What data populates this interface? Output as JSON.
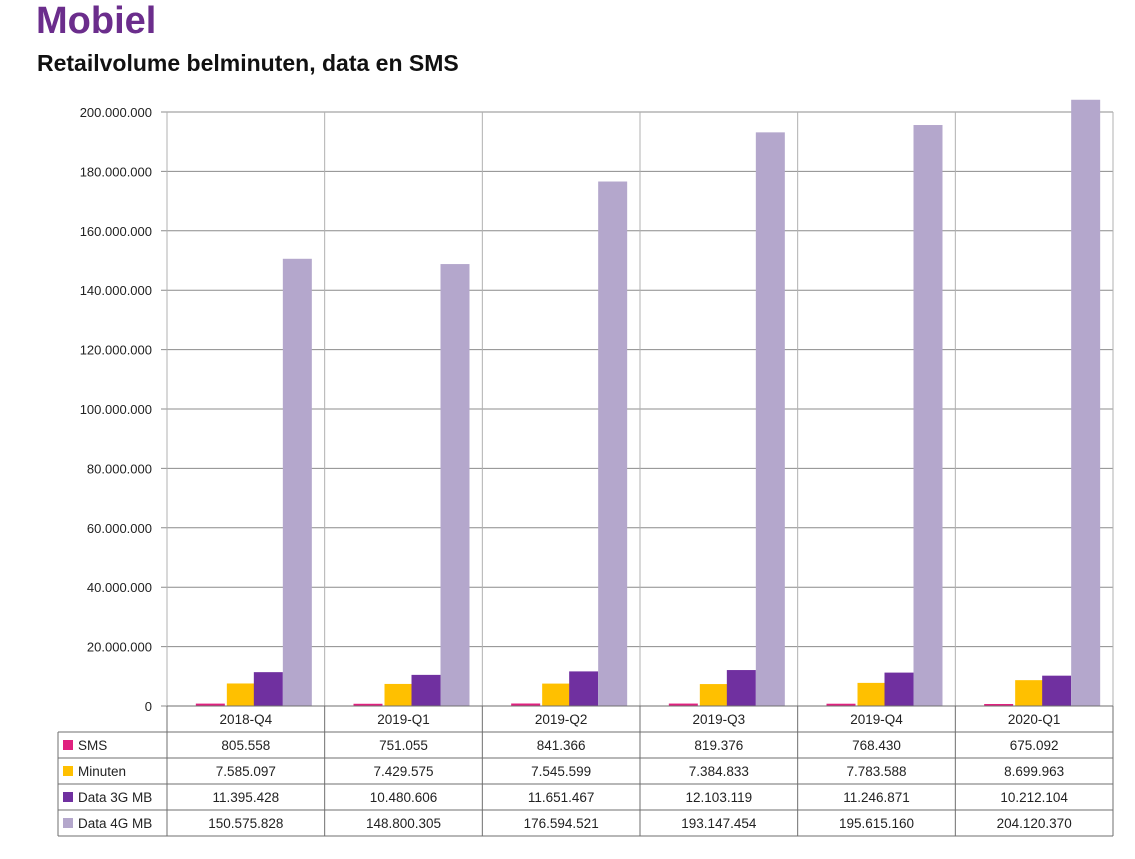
{
  "header": {
    "title": "Mobiel",
    "subtitle": "Retailvolume belminuten, data en SMS"
  },
  "chart_data": {
    "type": "bar",
    "title": "",
    "xlabel": "",
    "ylabel": "",
    "ylim": [
      0,
      200000000
    ],
    "yticks": [
      0,
      20000000,
      40000000,
      60000000,
      80000000,
      100000000,
      120000000,
      140000000,
      160000000,
      180000000,
      200000000
    ],
    "ytick_labels": [
      "0",
      "20.000.000",
      "40.000.000",
      "60.000.000",
      "80.000.000",
      "100.000.000",
      "120.000.000",
      "140.000.000",
      "160.000.000",
      "180.000.000",
      "200.000.000"
    ],
    "grid": true,
    "legend": "data-table",
    "categories": [
      "2018-Q4",
      "2019-Q1",
      "2019-Q2",
      "2019-Q3",
      "2019-Q4",
      "2020-Q1"
    ],
    "series": [
      {
        "name": "SMS",
        "color": "#e0217f",
        "values": [
          805558,
          751055,
          841366,
          819376,
          768430,
          675092
        ],
        "labels": [
          "805.558",
          "751.055",
          "841.366",
          "819.376",
          "768.430",
          "675.092"
        ]
      },
      {
        "name": "Minuten",
        "color": "#ffc000",
        "values": [
          7585097,
          7429575,
          7545599,
          7384833,
          7783588,
          8699963
        ],
        "labels": [
          "7.585.097",
          "7.429.575",
          "7.545.599",
          "7.384.833",
          "7.783.588",
          "8.699.963"
        ]
      },
      {
        "name": "Data 3G MB",
        "color": "#7030a0",
        "values": [
          11395428,
          10480606,
          11651467,
          12103119,
          11246871,
          10212104
        ],
        "labels": [
          "11.395.428",
          "10.480.606",
          "11.651.467",
          "12.103.119",
          "11.246.871",
          "10.212.104"
        ]
      },
      {
        "name": "Data 4G MB",
        "color": "#b4a7cc",
        "values": [
          150575828,
          148800305,
          176594521,
          193147454,
          195615160,
          204120370
        ],
        "labels": [
          "150.575.828",
          "148.800.305",
          "176.594.521",
          "193.147.454",
          "195.615.160",
          "204.120.370"
        ]
      }
    ]
  }
}
